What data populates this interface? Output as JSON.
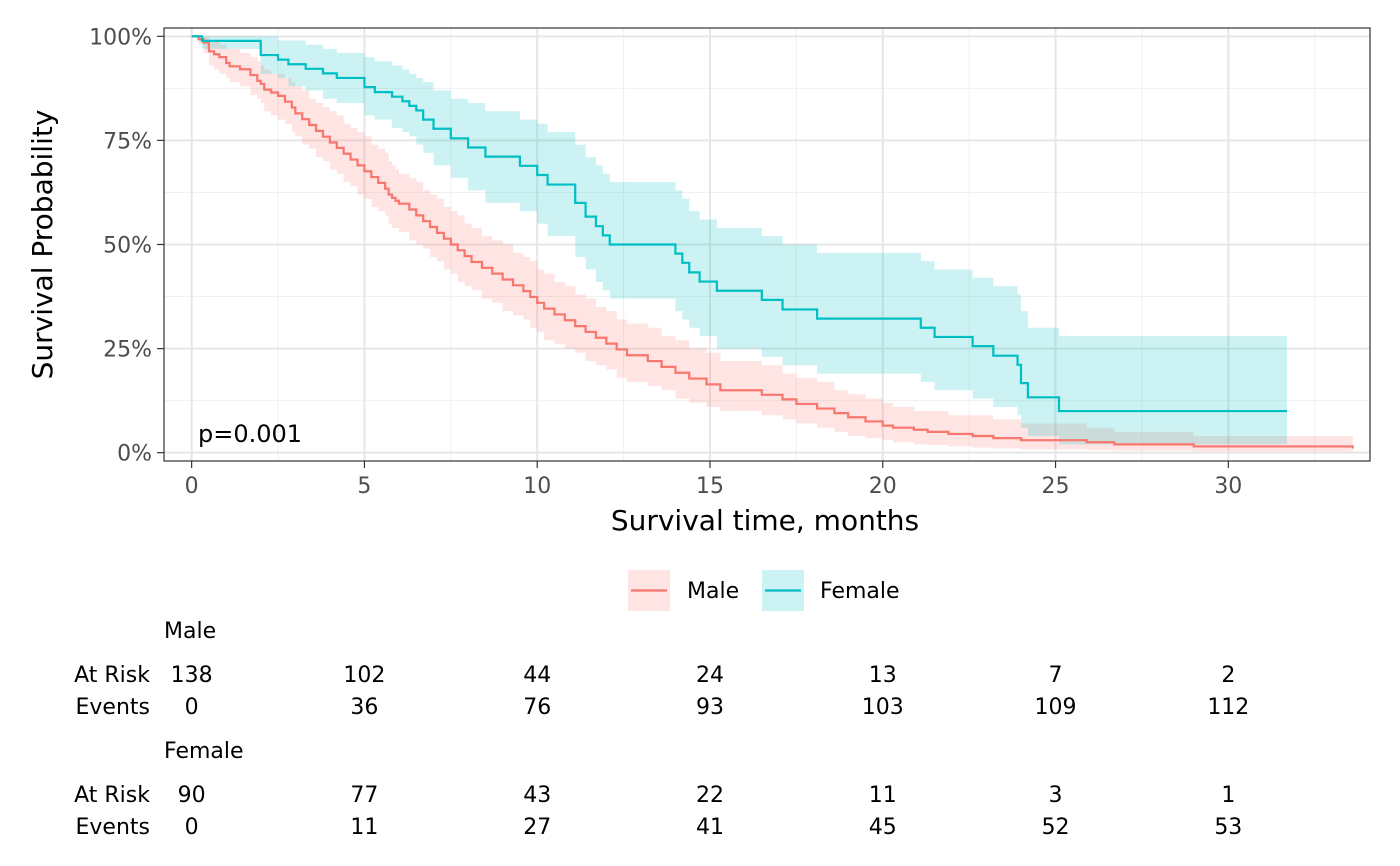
{
  "chart_data": {
    "type": "line",
    "subtype": "kaplan-meier",
    "xlabel": "Survival time, months",
    "ylabel": "Survival Probability",
    "xlim": [
      -0.8,
      34.1
    ],
    "ylim": [
      -0.02,
      1.02
    ],
    "x_ticks": [
      0,
      5,
      10,
      15,
      20,
      25,
      30
    ],
    "y_ticks": [
      0,
      0.25,
      0.5,
      0.75,
      1.0
    ],
    "y_tick_labels": [
      "0%",
      "25%",
      "50%",
      "75%",
      "100%"
    ],
    "grid": true,
    "annotation": "p=0.001",
    "legend": {
      "position": "bottom",
      "entries": [
        "Male",
        "Female"
      ]
    },
    "series": [
      {
        "name": "Male",
        "color": "#F8766D",
        "times": [
          0,
          0.2,
          0.35,
          0.5,
          0.65,
          0.8,
          1.0,
          1.1,
          1.4,
          1.7,
          1.9,
          2.0,
          2.1,
          2.3,
          2.5,
          2.7,
          2.9,
          3.0,
          3.2,
          3.4,
          3.6,
          3.8,
          4.0,
          4.2,
          4.4,
          4.6,
          4.8,
          5.0,
          5.2,
          5.4,
          5.6,
          5.7,
          5.8,
          5.9,
          6.0,
          6.3,
          6.5,
          6.7,
          6.9,
          7.1,
          7.3,
          7.5,
          7.7,
          7.9,
          8.1,
          8.4,
          8.7,
          9.0,
          9.3,
          9.6,
          9.8,
          10.0,
          10.2,
          10.5,
          10.8,
          11.1,
          11.4,
          11.7,
          12.0,
          12.3,
          12.6,
          13.2,
          13.6,
          14.0,
          14.4,
          14.9,
          15.3,
          16.5,
          17.1,
          17.5,
          18.1,
          18.6,
          19.0,
          19.5,
          20.0,
          20.3,
          20.9,
          21.3,
          21.9,
          22.6,
          23.2,
          24.0,
          25.9,
          26.7,
          29.0,
          33.6
        ],
        "surv": [
          1.0,
          0.993,
          0.985,
          0.964,
          0.957,
          0.95,
          0.936,
          0.928,
          0.921,
          0.907,
          0.893,
          0.886,
          0.872,
          0.865,
          0.857,
          0.843,
          0.829,
          0.815,
          0.801,
          0.787,
          0.773,
          0.759,
          0.745,
          0.732,
          0.718,
          0.704,
          0.69,
          0.676,
          0.662,
          0.648,
          0.634,
          0.62,
          0.612,
          0.605,
          0.598,
          0.584,
          0.57,
          0.556,
          0.542,
          0.528,
          0.514,
          0.5,
          0.486,
          0.472,
          0.458,
          0.444,
          0.43,
          0.416,
          0.402,
          0.388,
          0.374,
          0.36,
          0.346,
          0.332,
          0.318,
          0.304,
          0.29,
          0.276,
          0.262,
          0.248,
          0.234,
          0.22,
          0.206,
          0.192,
          0.178,
          0.164,
          0.15,
          0.139,
          0.128,
          0.117,
          0.106,
          0.095,
          0.085,
          0.075,
          0.065,
          0.06,
          0.055,
          0.05,
          0.045,
          0.04,
          0.035,
          0.03,
          0.025,
          0.02,
          0.015,
          0.01
        ],
        "lower": [
          1.0,
          0.98,
          0.96,
          0.93,
          0.92,
          0.91,
          0.9,
          0.89,
          0.88,
          0.86,
          0.85,
          0.84,
          0.82,
          0.81,
          0.8,
          0.79,
          0.77,
          0.76,
          0.74,
          0.73,
          0.71,
          0.7,
          0.68,
          0.67,
          0.65,
          0.64,
          0.62,
          0.61,
          0.59,
          0.58,
          0.57,
          0.55,
          0.54,
          0.54,
          0.53,
          0.51,
          0.5,
          0.49,
          0.47,
          0.46,
          0.44,
          0.43,
          0.41,
          0.4,
          0.39,
          0.37,
          0.36,
          0.34,
          0.33,
          0.32,
          0.3,
          0.29,
          0.27,
          0.26,
          0.25,
          0.24,
          0.22,
          0.21,
          0.2,
          0.18,
          0.17,
          0.16,
          0.15,
          0.13,
          0.12,
          0.11,
          0.1,
          0.09,
          0.08,
          0.07,
          0.06,
          0.05,
          0.04,
          0.035,
          0.03,
          0.025,
          0.02,
          0.018,
          0.015,
          0.012,
          0.01,
          0.008,
          0.006,
          0.005,
          0.003,
          0.002
        ],
        "upper": [
          1.0,
          1.0,
          1.0,
          0.99,
          0.99,
          0.98,
          0.97,
          0.97,
          0.96,
          0.95,
          0.94,
          0.93,
          0.92,
          0.91,
          0.91,
          0.9,
          0.89,
          0.88,
          0.87,
          0.85,
          0.84,
          0.83,
          0.82,
          0.81,
          0.79,
          0.78,
          0.77,
          0.76,
          0.74,
          0.73,
          0.72,
          0.7,
          0.69,
          0.68,
          0.67,
          0.66,
          0.65,
          0.63,
          0.62,
          0.61,
          0.59,
          0.58,
          0.57,
          0.55,
          0.54,
          0.52,
          0.51,
          0.5,
          0.48,
          0.47,
          0.46,
          0.44,
          0.43,
          0.41,
          0.4,
          0.38,
          0.37,
          0.35,
          0.34,
          0.32,
          0.31,
          0.3,
          0.28,
          0.27,
          0.25,
          0.24,
          0.22,
          0.21,
          0.19,
          0.18,
          0.17,
          0.15,
          0.14,
          0.13,
          0.12,
          0.11,
          0.1,
          0.1,
          0.09,
          0.09,
          0.08,
          0.07,
          0.06,
          0.05,
          0.04,
          0.03
        ]
      },
      {
        "name": "Female",
        "color": "#00BFC4",
        "times": [
          0,
          0.3,
          2.0,
          2.5,
          2.8,
          3.3,
          3.8,
          4.2,
          5.0,
          5.3,
          5.8,
          6.1,
          6.3,
          6.5,
          6.7,
          7.0,
          7.5,
          8.0,
          8.5,
          9.5,
          10.0,
          10.3,
          11.1,
          11.4,
          11.7,
          11.9,
          12.1,
          14.0,
          14.2,
          14.4,
          14.7,
          15.2,
          16.5,
          17.1,
          18.1,
          21.1,
          21.5,
          22.6,
          23.2,
          23.9,
          24.0,
          24.2,
          25.1,
          31.7
        ],
        "surv": [
          1.0,
          0.989,
          0.955,
          0.944,
          0.933,
          0.922,
          0.911,
          0.9,
          0.878,
          0.866,
          0.855,
          0.844,
          0.833,
          0.822,
          0.8,
          0.778,
          0.755,
          0.733,
          0.711,
          0.689,
          0.667,
          0.644,
          0.6,
          0.567,
          0.544,
          0.522,
          0.5,
          0.478,
          0.456,
          0.433,
          0.411,
          0.389,
          0.367,
          0.344,
          0.322,
          0.3,
          0.278,
          0.256,
          0.233,
          0.211,
          0.167,
          0.133,
          0.1,
          0.1
        ],
        "lower": [
          1.0,
          0.97,
          0.91,
          0.9,
          0.88,
          0.87,
          0.85,
          0.84,
          0.81,
          0.8,
          0.78,
          0.77,
          0.76,
          0.74,
          0.72,
          0.69,
          0.66,
          0.63,
          0.6,
          0.58,
          0.55,
          0.52,
          0.47,
          0.44,
          0.41,
          0.39,
          0.37,
          0.34,
          0.32,
          0.3,
          0.28,
          0.25,
          0.23,
          0.21,
          0.19,
          0.17,
          0.15,
          0.13,
          0.11,
          0.09,
          0.06,
          0.04,
          0.02,
          0.02
        ],
        "upper": [
          1.0,
          1.0,
          1.0,
          0.99,
          0.99,
          0.98,
          0.97,
          0.96,
          0.95,
          0.94,
          0.93,
          0.92,
          0.91,
          0.9,
          0.89,
          0.87,
          0.85,
          0.84,
          0.82,
          0.8,
          0.79,
          0.77,
          0.74,
          0.71,
          0.69,
          0.67,
          0.65,
          0.63,
          0.61,
          0.58,
          0.56,
          0.54,
          0.52,
          0.5,
          0.48,
          0.46,
          0.44,
          0.42,
          0.4,
          0.38,
          0.34,
          0.3,
          0.28,
          0.28
        ]
      }
    ],
    "risk_table": {
      "times": [
        0,
        5,
        10,
        15,
        20,
        25,
        30
      ],
      "row_labels": [
        "At Risk",
        "Events"
      ],
      "groups": [
        {
          "name": "Male",
          "at_risk": [
            138,
            102,
            44,
            24,
            13,
            7,
            2
          ],
          "events": [
            0,
            36,
            76,
            93,
            103,
            109,
            112
          ]
        },
        {
          "name": "Female",
          "at_risk": [
            90,
            77,
            43,
            22,
            11,
            3,
            1
          ],
          "events": [
            0,
            11,
            27,
            41,
            45,
            52,
            53
          ]
        }
      ]
    }
  }
}
